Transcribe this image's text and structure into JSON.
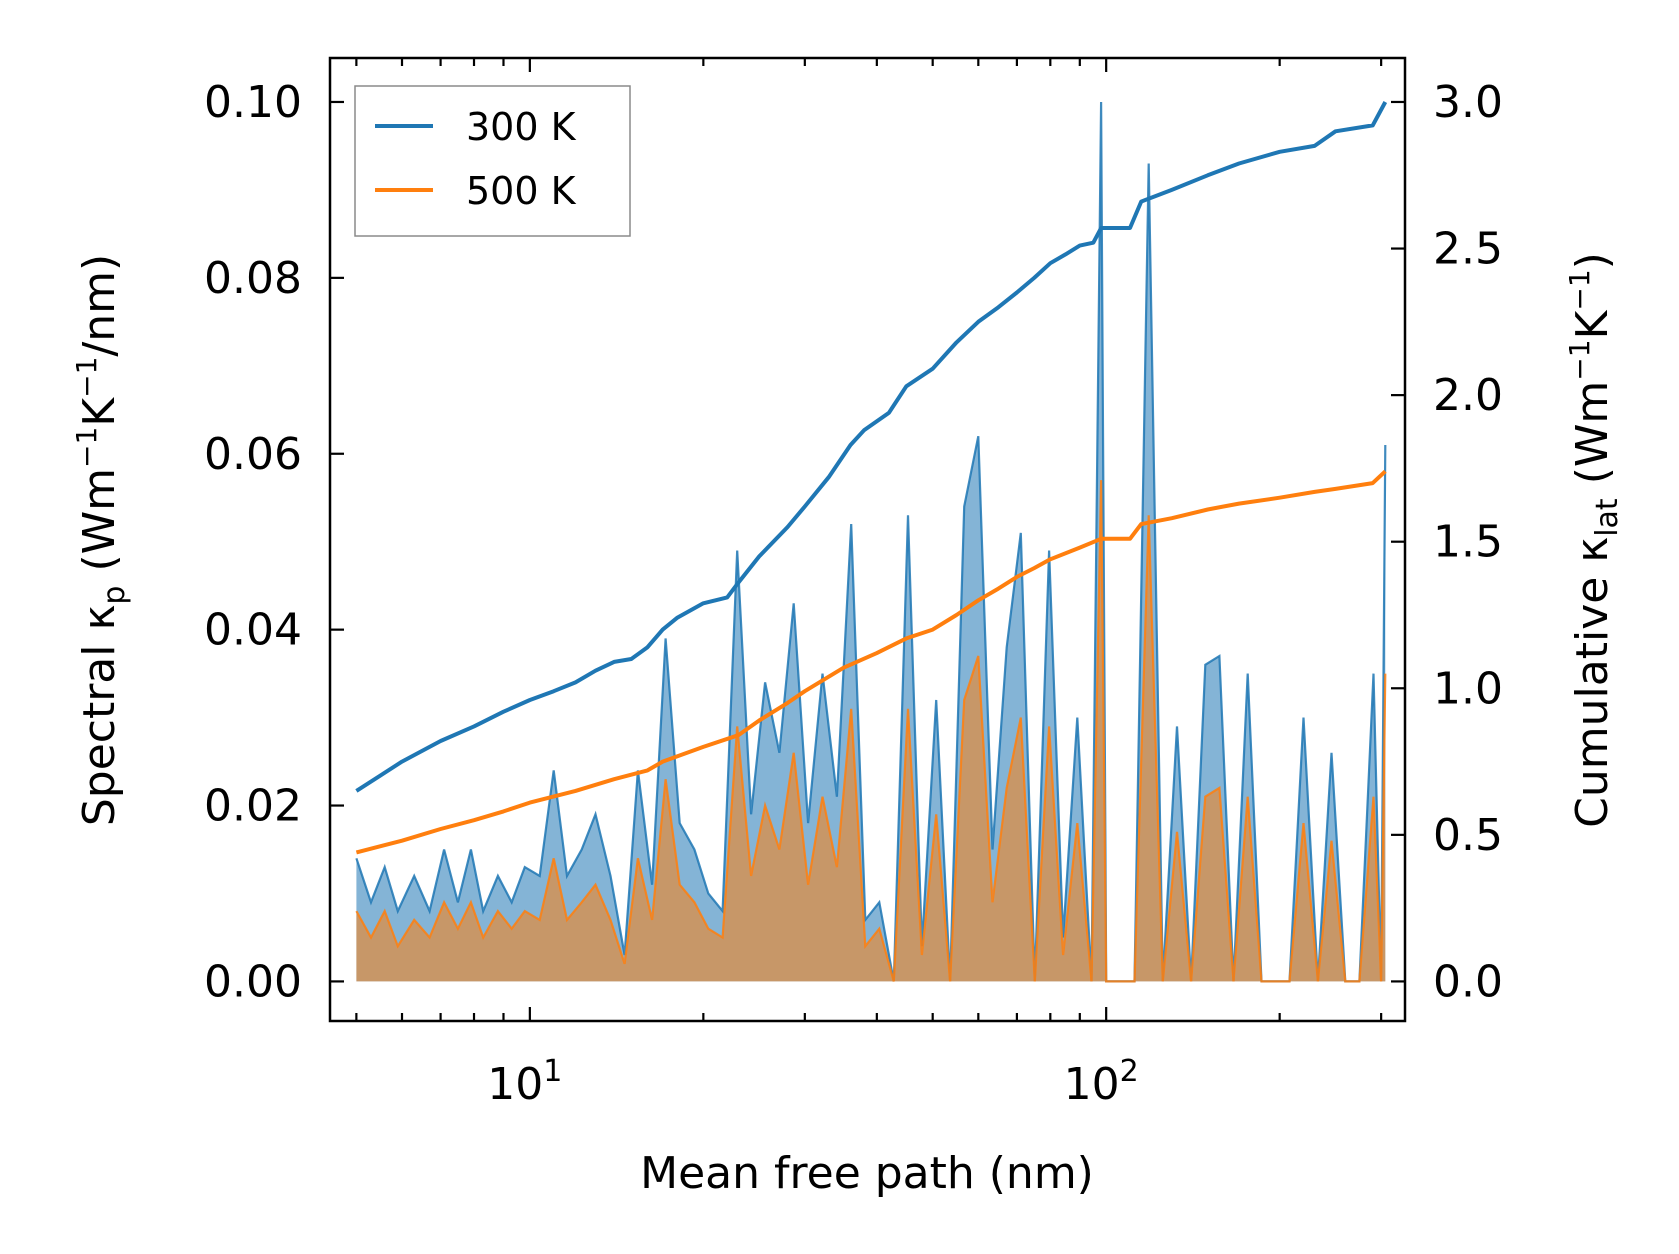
{
  "chart_data": {
    "type": "line",
    "xscale": "log",
    "xlabel": "Mean free path (nm)",
    "ylabel_left": {
      "pre": "Spectral κ",
      "sub": "p",
      "post": " (Wm",
      "sup1": "−1",
      "mid": "K",
      "sup2": "−1",
      "tail": "/nm)"
    },
    "ylabel_right": {
      "pre": "Cumulative κ",
      "sub": "lat",
      "post": " (Wm",
      "sup1": "−1",
      "mid": "K",
      "sup2": "−1",
      "tail": ")"
    },
    "xlim": [
      4.5,
      330
    ],
    "ylim_left": [
      -0.0045,
      0.105
    ],
    "ylim_right": [
      -0.135,
      3.15
    ],
    "x_ticks": [
      {
        "base": "10",
        "exp": "1",
        "value": 10
      },
      {
        "base": "10",
        "exp": "2",
        "value": 100
      }
    ],
    "y_ticks_left": [
      "0.00",
      "0.02",
      "0.04",
      "0.06",
      "0.08",
      "0.10"
    ],
    "y_ticks_right": [
      "0.0",
      "0.5",
      "1.0",
      "1.5",
      "2.0",
      "2.5",
      "3.0"
    ],
    "legend": {
      "position": "top-left",
      "entries": [
        "300 K",
        "500 K"
      ]
    },
    "colors": {
      "300K": "#1f77b4",
      "500K": "#ff7f0e",
      "fill300": "#1f77b4",
      "fill500": "#ff7f0e"
    },
    "series": [
      {
        "name": "300 K",
        "axis": "right",
        "kind": "cumulative",
        "x": [
          5,
          6,
          7,
          8,
          9,
          10,
          11,
          12,
          13,
          14,
          15,
          16,
          17,
          18,
          20,
          22,
          23,
          25,
          28,
          30,
          33,
          36,
          38,
          42,
          45,
          50,
          55,
          60,
          65,
          70,
          75,
          80,
          85,
          90,
          95,
          98,
          110,
          115,
          130,
          150,
          170,
          200,
          230,
          250,
          290,
          305
        ],
        "values": [
          0.65,
          0.75,
          0.82,
          0.87,
          0.92,
          0.96,
          0.99,
          1.02,
          1.06,
          1.09,
          1.1,
          1.14,
          1.2,
          1.24,
          1.29,
          1.31,
          1.36,
          1.45,
          1.55,
          1.62,
          1.72,
          1.83,
          1.88,
          1.94,
          2.03,
          2.09,
          2.18,
          2.25,
          2.3,
          2.35,
          2.4,
          2.45,
          2.48,
          2.51,
          2.52,
          2.57,
          2.57,
          2.66,
          2.7,
          2.75,
          2.79,
          2.83,
          2.85,
          2.9,
          2.92,
          3.0
        ]
      },
      {
        "name": "500 K",
        "axis": "right",
        "kind": "cumulative",
        "x": [
          5,
          6,
          7,
          8,
          9,
          10,
          12,
          14,
          16,
          17,
          20,
          23,
          25,
          28,
          30,
          35,
          40,
          45,
          50,
          55,
          60,
          65,
          70,
          75,
          80,
          90,
          98,
          110,
          115,
          130,
          150,
          170,
          200,
          230,
          250,
          290,
          305
        ],
        "values": [
          0.44,
          0.48,
          0.52,
          0.55,
          0.58,
          0.61,
          0.65,
          0.69,
          0.72,
          0.75,
          0.8,
          0.84,
          0.89,
          0.95,
          0.99,
          1.07,
          1.12,
          1.17,
          1.2,
          1.25,
          1.3,
          1.34,
          1.38,
          1.41,
          1.44,
          1.48,
          1.51,
          1.51,
          1.56,
          1.58,
          1.61,
          1.63,
          1.65,
          1.67,
          1.68,
          1.7,
          1.74
        ]
      },
      {
        "name": "300 K spectral",
        "axis": "left",
        "kind": "spectral",
        "x": [
          5,
          5.3,
          5.6,
          5.9,
          6.3,
          6.7,
          7.1,
          7.5,
          7.9,
          8.3,
          8.8,
          9.3,
          9.8,
          10.4,
          11,
          11.6,
          12.3,
          13,
          13.8,
          14.6,
          15.4,
          16.3,
          17.2,
          18.2,
          19.3,
          20.4,
          21.6,
          22.9,
          24.2,
          25.6,
          27.1,
          28.7,
          30.4,
          32.2,
          34.1,
          36.1,
          38.2,
          40.4,
          42.8,
          45.3,
          47.9,
          50.7,
          53.6,
          56.7,
          60,
          63.5,
          67.2,
          71.1,
          75.2,
          79.6,
          84.2,
          89.1,
          94.3,
          98,
          100,
          106,
          112,
          118.5,
          125.4,
          132.7,
          140.4,
          148.6,
          157.2,
          166.3,
          176,
          186,
          197,
          208,
          220,
          233,
          246,
          260,
          275,
          291,
          300,
          305
        ],
        "values": [
          0.014,
          0.009,
          0.013,
          0.008,
          0.012,
          0.008,
          0.015,
          0.009,
          0.015,
          0.008,
          0.012,
          0.009,
          0.013,
          0.012,
          0.024,
          0.012,
          0.015,
          0.019,
          0.012,
          0.003,
          0.024,
          0.011,
          0.039,
          0.018,
          0.015,
          0.01,
          0.008,
          0.049,
          0.019,
          0.034,
          0.026,
          0.043,
          0.018,
          0.035,
          0.021,
          0.052,
          0.007,
          0.009,
          0.0,
          0.053,
          0.004,
          0.032,
          0.0,
          0.054,
          0.062,
          0.015,
          0.038,
          0.051,
          0.0,
          0.049,
          0.005,
          0.03,
          0.0,
          0.1,
          0.0,
          0.0,
          0.0,
          0.093,
          0.0,
          0.029,
          0.0,
          0.036,
          0.037,
          0.0,
          0.035,
          0.0,
          0.0,
          0.0,
          0.03,
          0.0,
          0.026,
          0.0,
          0.0,
          0.035,
          0.0,
          0.061
        ]
      },
      {
        "name": "500 K spectral",
        "axis": "left",
        "kind": "spectral",
        "x": [
          5,
          5.3,
          5.6,
          5.9,
          6.3,
          6.7,
          7.1,
          7.5,
          7.9,
          8.3,
          8.8,
          9.3,
          9.8,
          10.4,
          11,
          11.6,
          12.3,
          13,
          13.8,
          14.6,
          15.4,
          16.3,
          17.2,
          18.2,
          19.3,
          20.4,
          21.6,
          22.9,
          24.2,
          25.6,
          27.1,
          28.7,
          30.4,
          32.2,
          34.1,
          36.1,
          38.2,
          40.4,
          42.8,
          45.3,
          47.9,
          50.7,
          53.6,
          56.7,
          60,
          63.5,
          67.2,
          71.1,
          75.2,
          79.6,
          84.2,
          89.1,
          94.3,
          98,
          100,
          106,
          112,
          118.5,
          125.4,
          132.7,
          140.4,
          148.6,
          157.2,
          166.3,
          176,
          186,
          197,
          208,
          220,
          233,
          246,
          260,
          275,
          291,
          300,
          305
        ],
        "values": [
          0.008,
          0.005,
          0.008,
          0.004,
          0.007,
          0.005,
          0.009,
          0.006,
          0.009,
          0.005,
          0.008,
          0.006,
          0.008,
          0.007,
          0.014,
          0.007,
          0.009,
          0.011,
          0.007,
          0.002,
          0.014,
          0.007,
          0.023,
          0.011,
          0.009,
          0.006,
          0.005,
          0.029,
          0.012,
          0.02,
          0.015,
          0.026,
          0.011,
          0.021,
          0.013,
          0.031,
          0.004,
          0.006,
          0.0,
          0.031,
          0.003,
          0.019,
          0.0,
          0.032,
          0.037,
          0.009,
          0.022,
          0.03,
          0.0,
          0.029,
          0.003,
          0.018,
          0.0,
          0.057,
          0.0,
          0.0,
          0.0,
          0.053,
          0.0,
          0.017,
          0.0,
          0.021,
          0.022,
          0.0,
          0.021,
          0.0,
          0.0,
          0.0,
          0.018,
          0.0,
          0.016,
          0.0,
          0.0,
          0.021,
          0.0,
          0.035
        ]
      }
    ]
  }
}
